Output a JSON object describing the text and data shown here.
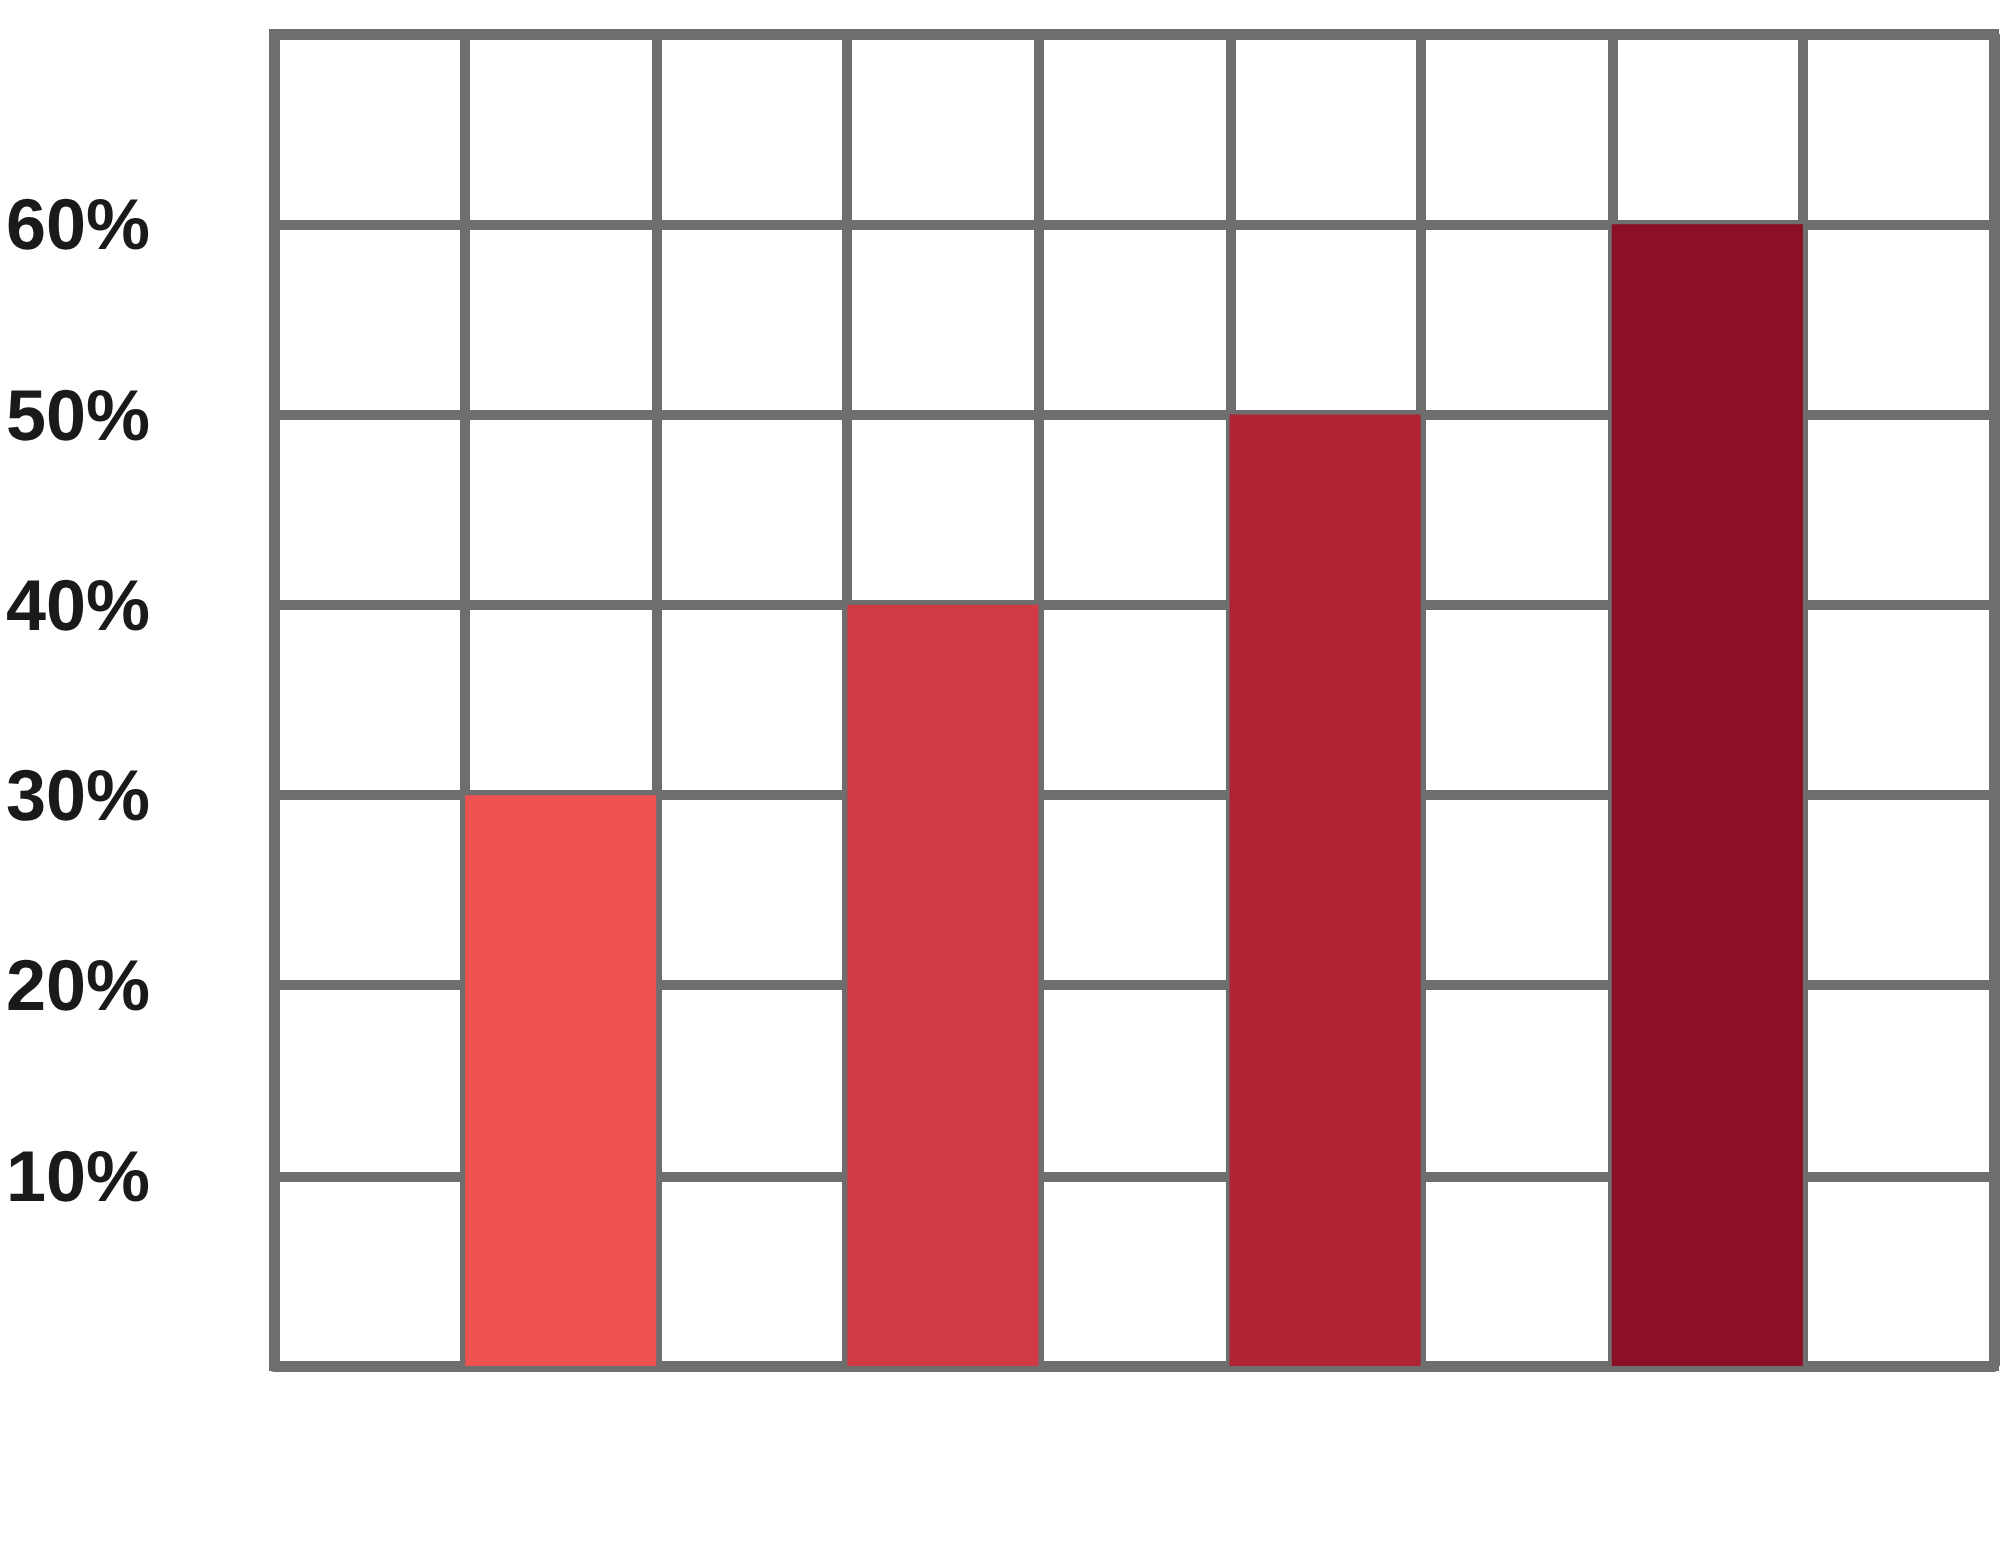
{
  "chart_data": {
    "type": "bar",
    "categories": [
      null,
      null,
      null,
      null,
      null,
      null,
      null,
      null,
      null
    ],
    "values": [
      null,
      30,
      null,
      40,
      null,
      50,
      null,
      60,
      null
    ],
    "colors": [
      null,
      "#ee5350",
      null,
      "#d03a44",
      null,
      "#b02334",
      null,
      "#8b1025",
      null
    ],
    "ylim": [
      0,
      70
    ],
    "yticks": [
      {
        "value": 0,
        "label": null
      },
      {
        "value": 10,
        "label": "10%"
      },
      {
        "value": 20,
        "label": "20%"
      },
      {
        "value": 30,
        "label": "30%"
      },
      {
        "value": 40,
        "label": "40%"
      },
      {
        "value": 50,
        "label": "50%"
      },
      {
        "value": 60,
        "label": "60%"
      },
      {
        "value": 70,
        "label": null
      }
    ],
    "grid": true,
    "tick_labels": "y"
  }
}
